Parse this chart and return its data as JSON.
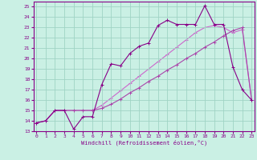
{
  "bg_color": "#caf0e4",
  "grid_color": "#a0d4c4",
  "line_color1": "#880088",
  "line_color2": "#aa44aa",
  "line_color3": "#cc66cc",
  "xlim": [
    -0.3,
    23.3
  ],
  "ylim": [
    13,
    25.5
  ],
  "xticks": [
    0,
    1,
    2,
    3,
    4,
    5,
    6,
    7,
    8,
    9,
    10,
    11,
    12,
    13,
    14,
    15,
    16,
    17,
    18,
    19,
    20,
    21,
    22,
    23
  ],
  "yticks": [
    13,
    14,
    15,
    16,
    17,
    18,
    19,
    20,
    21,
    22,
    23,
    24,
    25
  ],
  "xlabel": "Windchill (Refroidissement éolien,°C)",
  "s1_x": [
    0,
    1,
    2,
    3,
    4,
    5,
    6,
    7,
    8,
    9,
    10,
    11,
    12,
    13,
    14,
    15,
    16,
    17,
    18,
    19,
    20,
    21,
    22,
    23
  ],
  "s1_y": [
    13.8,
    14.0,
    15.0,
    15.0,
    13.2,
    14.4,
    14.4,
    17.5,
    19.5,
    19.3,
    20.5,
    21.2,
    21.5,
    23.2,
    23.7,
    23.3,
    23.3,
    23.3,
    25.1,
    23.3,
    23.3,
    19.2,
    17.0,
    16.0
  ],
  "s2_x": [
    0,
    1,
    2,
    3,
    4,
    5,
    6,
    7,
    8,
    9,
    10,
    11,
    12,
    13,
    14,
    15,
    16,
    17,
    18,
    19,
    20,
    21,
    22,
    23
  ],
  "s2_y": [
    13.8,
    14.0,
    15.0,
    15.0,
    15.0,
    15.0,
    15.0,
    15.2,
    15.6,
    16.1,
    16.7,
    17.2,
    17.8,
    18.3,
    18.9,
    19.4,
    20.0,
    20.5,
    21.1,
    21.6,
    22.2,
    22.7,
    23.0,
    16.0
  ],
  "s3_x": [
    0,
    1,
    2,
    3,
    4,
    5,
    6,
    7,
    8,
    9,
    10,
    11,
    12,
    13,
    14,
    15,
    16,
    17,
    18,
    19,
    20,
    21,
    22,
    23
  ],
  "s3_y": [
    13.8,
    14.0,
    15.0,
    15.0,
    15.0,
    15.0,
    15.0,
    15.5,
    16.2,
    16.9,
    17.6,
    18.3,
    19.0,
    19.7,
    20.4,
    21.1,
    21.8,
    22.5,
    23.0,
    23.2,
    23.0,
    22.5,
    22.8,
    16.0
  ]
}
